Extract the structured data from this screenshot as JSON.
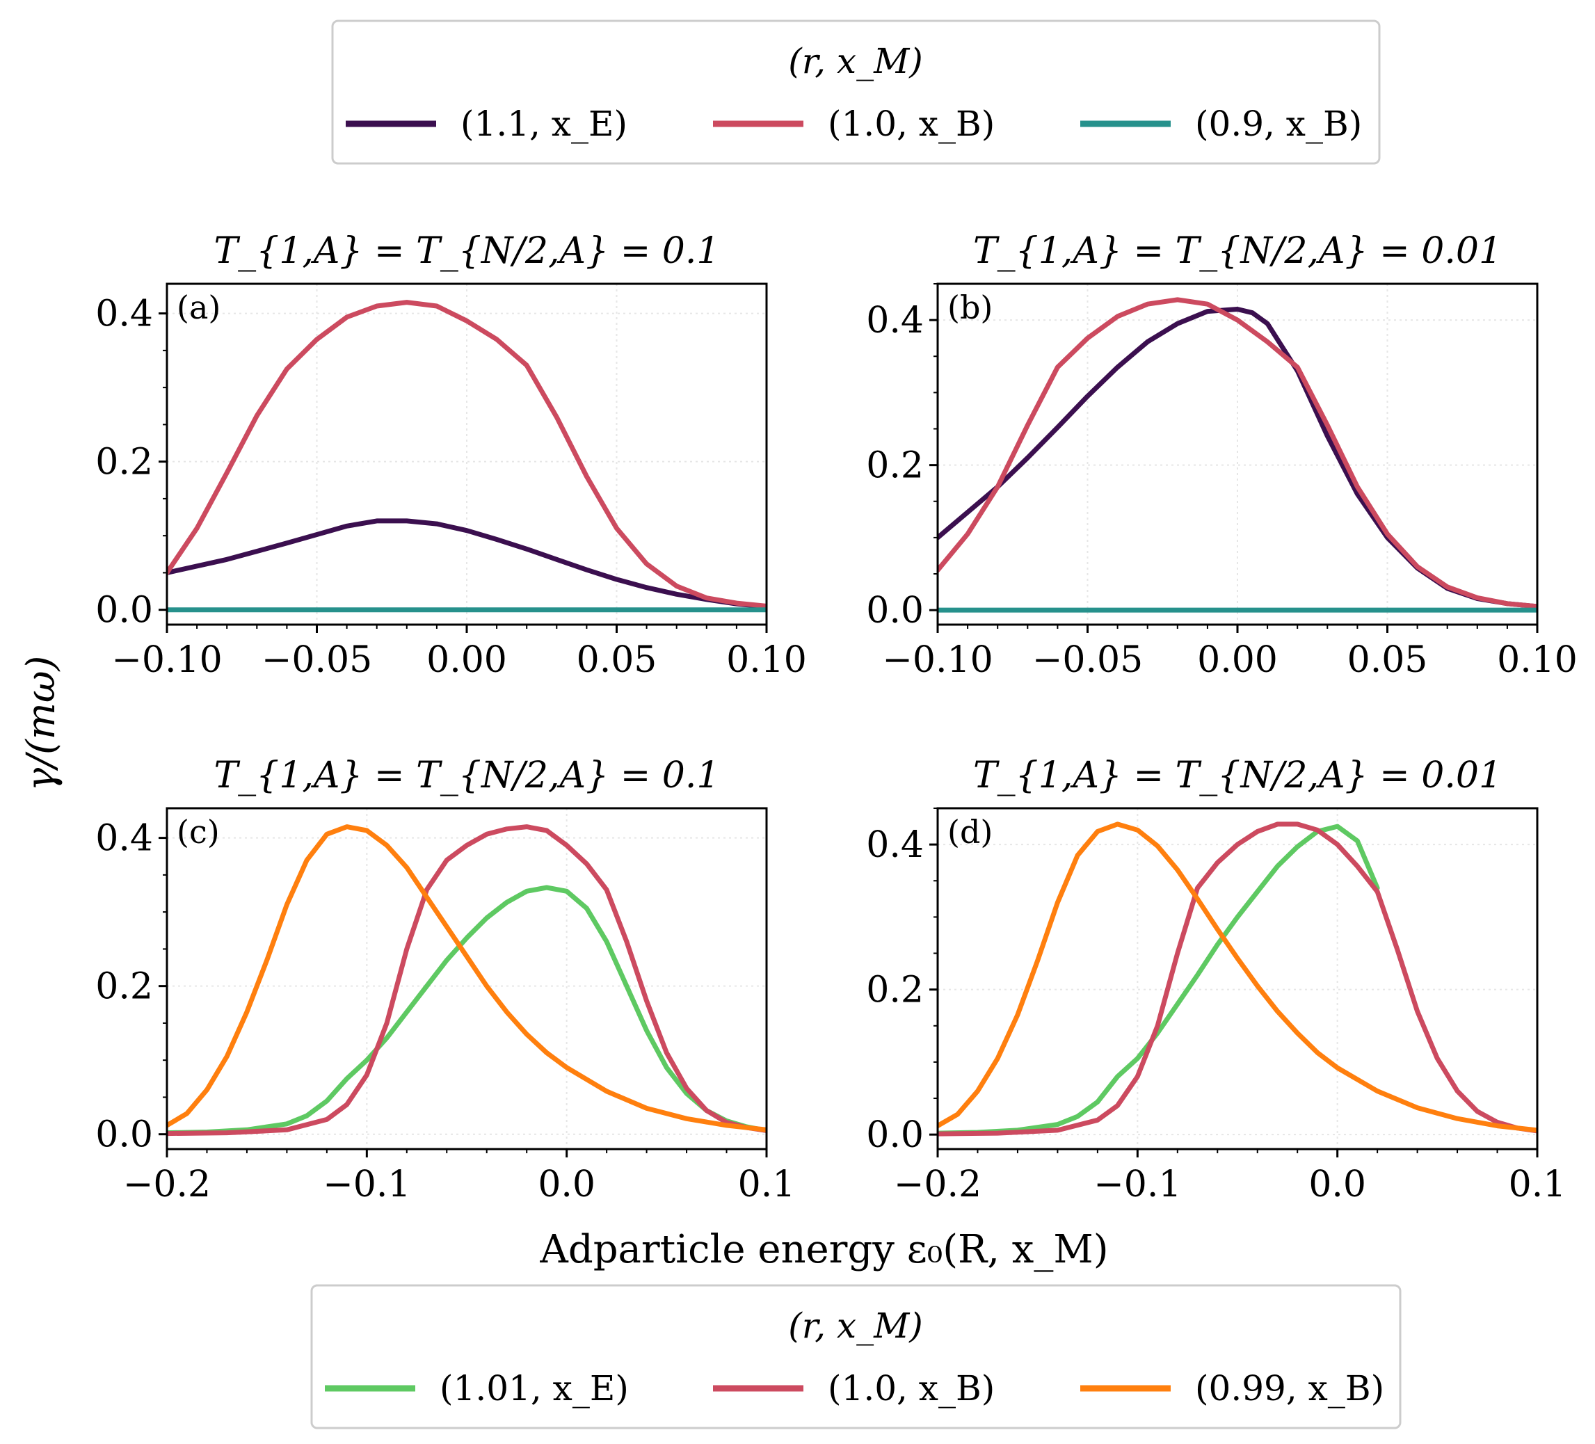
{
  "figure": {
    "ylabel": "γ/(mω)",
    "xlabel": "Adparticle energy ε₀(R, x_M)"
  },
  "legends": [
    {
      "title": "(r, x_M)",
      "entries": [
        {
          "label": "(1.1, x_E)",
          "color": "#3b0f4f"
        },
        {
          "label": "(1.0, x_B)",
          "color": "#cc4a5f"
        },
        {
          "label": "(0.9, x_B)",
          "color": "#26918c"
        }
      ]
    },
    {
      "title": "(r, x_M)",
      "entries": [
        {
          "label": "(1.01, x_E)",
          "color": "#5ec962"
        },
        {
          "label": "(1.0, x_B)",
          "color": "#cc4a5f"
        },
        {
          "label": "(0.99, x_B)",
          "color": "#ff7f0e"
        }
      ]
    }
  ],
  "chart_data": [
    {
      "type": "line",
      "panel_label": "(a)",
      "title": "T_{1,A} = T_{N/2,A} = 0.1",
      "xlim": [
        -0.1,
        0.1
      ],
      "ylim": [
        -0.02,
        0.44
      ],
      "xticks": [
        -0.1,
        -0.05,
        0.0,
        0.05,
        0.1
      ],
      "xticklabels": [
        "−0.10",
        "−0.05",
        "0.00",
        "0.05",
        "0.10"
      ],
      "yticks": [
        0.0,
        0.2,
        0.4
      ],
      "yticklabels": [
        "0.0",
        "0.2",
        "0.4"
      ],
      "grid": true,
      "series": [
        {
          "name": "(1.1, x_E)",
          "color": "#3b0f4f",
          "x": [
            -0.1,
            -0.08,
            -0.06,
            -0.04,
            -0.03,
            -0.02,
            -0.01,
            0.0,
            0.01,
            0.02,
            0.03,
            0.04,
            0.05,
            0.06,
            0.07,
            0.08,
            0.09,
            0.1
          ],
          "y": [
            0.05,
            0.068,
            0.09,
            0.113,
            0.12,
            0.12,
            0.116,
            0.107,
            0.095,
            0.082,
            0.068,
            0.054,
            0.041,
            0.03,
            0.021,
            0.014,
            0.008,
            0.004
          ]
        },
        {
          "name": "(1.0, x_B)",
          "color": "#cc4a5f",
          "x": [
            -0.1,
            -0.09,
            -0.08,
            -0.07,
            -0.06,
            -0.05,
            -0.04,
            -0.03,
            -0.02,
            -0.01,
            0.0,
            0.01,
            0.02,
            0.03,
            0.04,
            0.05,
            0.06,
            0.07,
            0.08,
            0.09,
            0.1
          ],
          "y": [
            0.05,
            0.11,
            0.185,
            0.262,
            0.325,
            0.365,
            0.395,
            0.41,
            0.415,
            0.41,
            0.39,
            0.365,
            0.33,
            0.26,
            0.18,
            0.11,
            0.062,
            0.032,
            0.016,
            0.009,
            0.005
          ]
        },
        {
          "name": "(0.9, x_B)",
          "color": "#26918c",
          "x": [
            -0.1,
            0.1
          ],
          "y": [
            0.0,
            0.0
          ]
        }
      ]
    },
    {
      "type": "line",
      "panel_label": "(b)",
      "title": "T_{1,A} = T_{N/2,A} = 0.01",
      "xlim": [
        -0.1,
        0.1
      ],
      "ylim": [
        -0.02,
        0.45
      ],
      "xticks": [
        -0.1,
        -0.05,
        0.0,
        0.05,
        0.1
      ],
      "xticklabels": [
        "−0.10",
        "−0.05",
        "0.00",
        "0.05",
        "0.10"
      ],
      "yticks": [
        0.0,
        0.2,
        0.4
      ],
      "yticklabels": [
        "0.0",
        "0.2",
        "0.4"
      ],
      "grid": true,
      "series": [
        {
          "name": "(1.1, x_E)",
          "color": "#3b0f4f",
          "x": [
            -0.1,
            -0.09,
            -0.08,
            -0.07,
            -0.06,
            -0.05,
            -0.04,
            -0.03,
            -0.02,
            -0.01,
            0.0,
            0.005,
            0.01,
            0.02,
            0.03,
            0.04,
            0.05,
            0.06,
            0.07,
            0.08,
            0.09,
            0.1
          ],
          "y": [
            0.1,
            0.135,
            0.17,
            0.21,
            0.252,
            0.295,
            0.335,
            0.37,
            0.395,
            0.412,
            0.415,
            0.41,
            0.395,
            0.33,
            0.24,
            0.16,
            0.1,
            0.058,
            0.03,
            0.016,
            0.009,
            0.005
          ]
        },
        {
          "name": "(1.0, x_B)",
          "color": "#cc4a5f",
          "x": [
            -0.1,
            -0.09,
            -0.08,
            -0.07,
            -0.06,
            -0.05,
            -0.04,
            -0.03,
            -0.02,
            -0.01,
            0.0,
            0.01,
            0.02,
            0.03,
            0.04,
            0.05,
            0.06,
            0.07,
            0.08,
            0.09,
            0.1
          ],
          "y": [
            0.055,
            0.105,
            0.17,
            0.255,
            0.335,
            0.375,
            0.405,
            0.422,
            0.428,
            0.422,
            0.4,
            0.37,
            0.335,
            0.255,
            0.17,
            0.105,
            0.06,
            0.032,
            0.017,
            0.009,
            0.005
          ]
        },
        {
          "name": "(0.9, x_B)",
          "color": "#26918c",
          "x": [
            -0.1,
            0.1
          ],
          "y": [
            0.0,
            0.0
          ]
        }
      ]
    },
    {
      "type": "line",
      "panel_label": "(c)",
      "title": "T_{1,A} = T_{N/2,A} = 0.1",
      "xlim": [
        -0.2,
        0.1
      ],
      "ylim": [
        -0.02,
        0.44
      ],
      "xticks": [
        -0.2,
        -0.1,
        0.0,
        0.1
      ],
      "xticklabels": [
        "−0.2",
        "−0.1",
        "0.0",
        "0.1"
      ],
      "yticks": [
        0.0,
        0.2,
        0.4
      ],
      "yticklabels": [
        "0.0",
        "0.2",
        "0.4"
      ],
      "grid": true,
      "series": [
        {
          "name": "(1.01, x_E)",
          "color": "#5ec962",
          "x": [
            -0.2,
            -0.18,
            -0.16,
            -0.14,
            -0.13,
            -0.12,
            -0.11,
            -0.1,
            -0.09,
            -0.08,
            -0.07,
            -0.06,
            -0.05,
            -0.04,
            -0.03,
            -0.02,
            -0.01,
            0.0,
            0.01,
            0.02,
            0.03,
            0.04,
            0.05,
            0.06,
            0.07,
            0.08,
            0.09,
            0.1
          ],
          "y": [
            0.002,
            0.003,
            0.006,
            0.014,
            0.025,
            0.045,
            0.075,
            0.1,
            0.13,
            0.165,
            0.2,
            0.235,
            0.265,
            0.292,
            0.313,
            0.328,
            0.333,
            0.328,
            0.305,
            0.26,
            0.2,
            0.14,
            0.09,
            0.055,
            0.032,
            0.018,
            0.01,
            0.005
          ]
        },
        {
          "name": "(1.0, x_B)",
          "color": "#cc4a5f",
          "x": [
            -0.2,
            -0.17,
            -0.14,
            -0.12,
            -0.11,
            -0.1,
            -0.09,
            -0.08,
            -0.07,
            -0.06,
            -0.05,
            -0.04,
            -0.03,
            -0.02,
            -0.01,
            0.0,
            0.01,
            0.02,
            0.03,
            0.04,
            0.05,
            0.06,
            0.07,
            0.08,
            0.09,
            0.1
          ],
          "y": [
            0.001,
            0.002,
            0.006,
            0.02,
            0.04,
            0.08,
            0.15,
            0.25,
            0.33,
            0.37,
            0.39,
            0.405,
            0.412,
            0.415,
            0.41,
            0.39,
            0.365,
            0.33,
            0.26,
            0.18,
            0.11,
            0.062,
            0.032,
            0.016,
            0.009,
            0.005
          ]
        },
        {
          "name": "(0.99, x_B)",
          "color": "#ff7f0e",
          "x": [
            -0.2,
            -0.19,
            -0.18,
            -0.17,
            -0.16,
            -0.15,
            -0.14,
            -0.13,
            -0.12,
            -0.11,
            -0.1,
            -0.09,
            -0.08,
            -0.07,
            -0.06,
            -0.05,
            -0.04,
            -0.03,
            -0.02,
            -0.01,
            0.0,
            0.02,
            0.04,
            0.06,
            0.08,
            0.1
          ],
          "y": [
            0.012,
            0.028,
            0.06,
            0.105,
            0.165,
            0.235,
            0.31,
            0.37,
            0.405,
            0.415,
            0.41,
            0.39,
            0.36,
            0.32,
            0.28,
            0.24,
            0.2,
            0.165,
            0.135,
            0.11,
            0.09,
            0.058,
            0.035,
            0.021,
            0.012,
            0.006
          ]
        }
      ]
    },
    {
      "type": "line",
      "panel_label": "(d)",
      "title": "T_{1,A} = T_{N/2,A} = 0.01",
      "xlim": [
        -0.2,
        0.1
      ],
      "ylim": [
        -0.02,
        0.45
      ],
      "xticks": [
        -0.2,
        -0.1,
        0.0,
        0.1
      ],
      "xticklabels": [
        "−0.2",
        "−0.1",
        "0.0",
        "0.1"
      ],
      "yticks": [
        0.0,
        0.2,
        0.4
      ],
      "yticklabels": [
        "0.0",
        "0.2",
        "0.4"
      ],
      "grid": true,
      "series": [
        {
          "name": "(1.01, x_E)",
          "color": "#5ec962",
          "x": [
            -0.2,
            -0.18,
            -0.16,
            -0.14,
            -0.13,
            -0.12,
            -0.11,
            -0.1,
            -0.09,
            -0.08,
            -0.07,
            -0.06,
            -0.05,
            -0.04,
            -0.03,
            -0.02,
            -0.01,
            0.0,
            0.01,
            0.02
          ],
          "y": [
            0.002,
            0.003,
            0.006,
            0.014,
            0.025,
            0.045,
            0.08,
            0.105,
            0.14,
            0.18,
            0.22,
            0.262,
            0.3,
            0.335,
            0.37,
            0.397,
            0.418,
            0.425,
            0.405,
            0.34
          ]
        },
        {
          "name": "(1.0, x_B)",
          "color": "#cc4a5f",
          "x": [
            -0.2,
            -0.17,
            -0.14,
            -0.12,
            -0.11,
            -0.1,
            -0.09,
            -0.08,
            -0.07,
            -0.06,
            -0.05,
            -0.04,
            -0.03,
            -0.02,
            -0.01,
            0.0,
            0.01,
            0.02,
            0.03,
            0.04,
            0.05,
            0.06,
            0.07,
            0.08,
            0.09,
            0.1
          ],
          "y": [
            0.001,
            0.002,
            0.006,
            0.02,
            0.04,
            0.08,
            0.15,
            0.25,
            0.34,
            0.375,
            0.4,
            0.418,
            0.428,
            0.428,
            0.42,
            0.4,
            0.37,
            0.335,
            0.255,
            0.17,
            0.105,
            0.06,
            0.032,
            0.017,
            0.009,
            0.005
          ]
        },
        {
          "name": "(0.99, x_B)",
          "color": "#ff7f0e",
          "x": [
            -0.2,
            -0.19,
            -0.18,
            -0.17,
            -0.16,
            -0.15,
            -0.14,
            -0.13,
            -0.12,
            -0.11,
            -0.1,
            -0.09,
            -0.08,
            -0.07,
            -0.06,
            -0.05,
            -0.04,
            -0.03,
            -0.02,
            -0.01,
            0.0,
            0.02,
            0.04,
            0.06,
            0.08,
            0.1
          ],
          "y": [
            0.012,
            0.028,
            0.06,
            0.105,
            0.165,
            0.24,
            0.32,
            0.385,
            0.418,
            0.428,
            0.42,
            0.398,
            0.365,
            0.325,
            0.283,
            0.243,
            0.205,
            0.17,
            0.14,
            0.113,
            0.092,
            0.06,
            0.037,
            0.022,
            0.012,
            0.006
          ]
        }
      ]
    }
  ]
}
